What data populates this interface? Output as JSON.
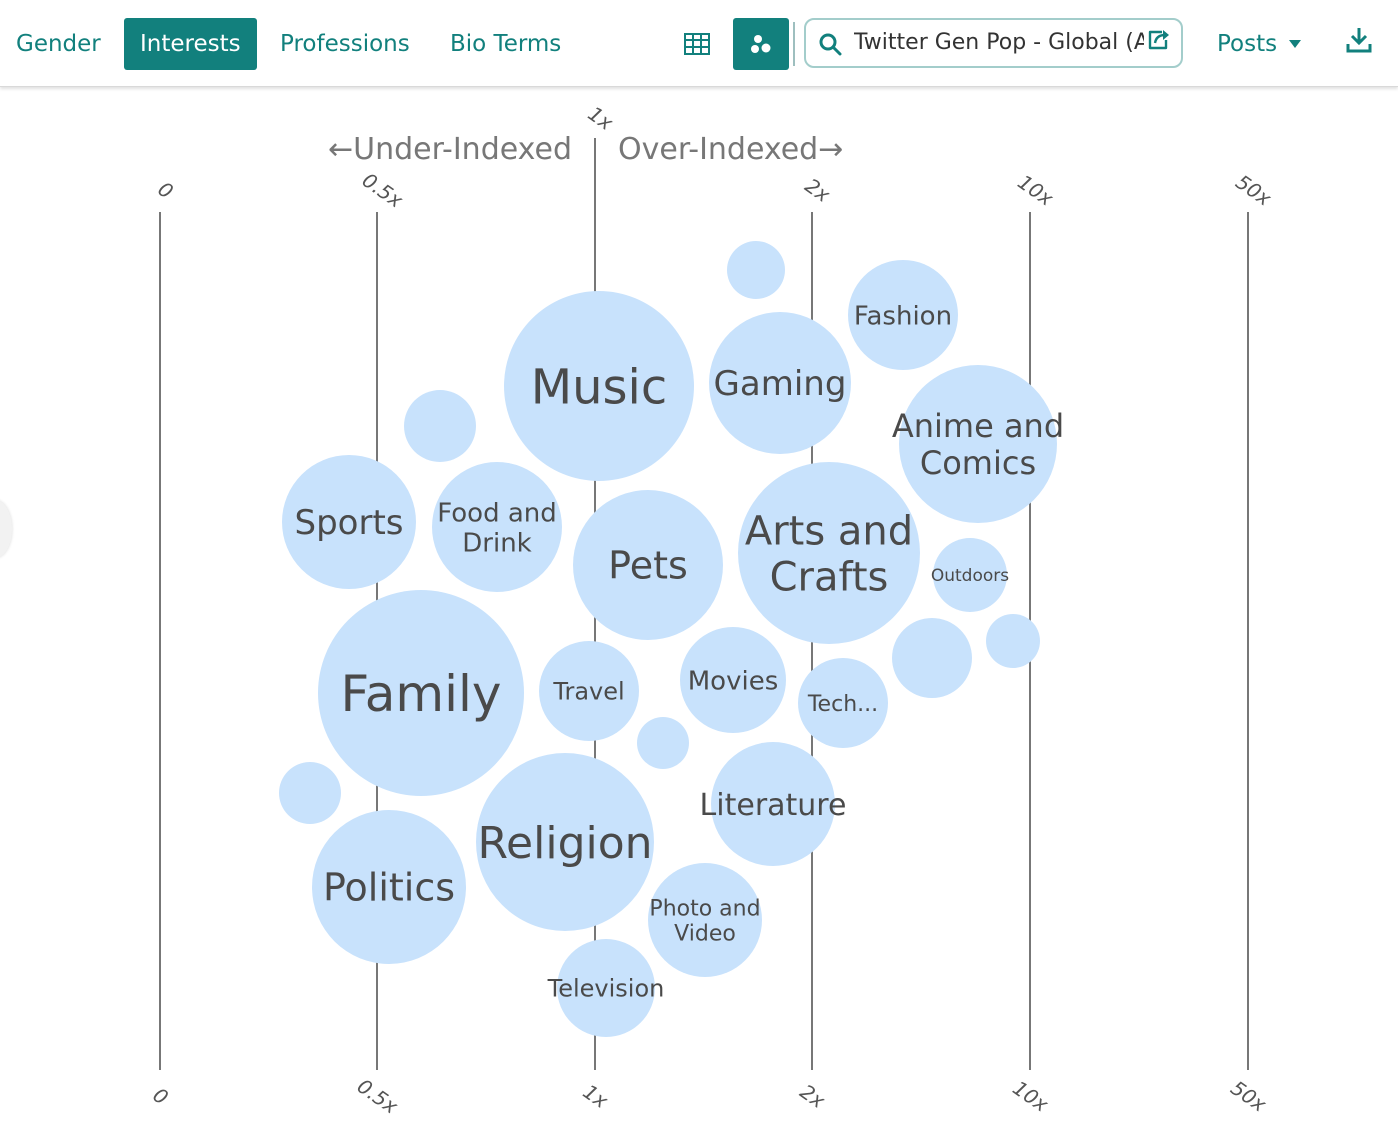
{
  "nav": {
    "tabs": [
      {
        "label": "Gender",
        "active": false
      },
      {
        "label": "Interests",
        "active": true
      },
      {
        "label": "Professions",
        "active": false
      },
      {
        "label": "Bio Terms",
        "active": false
      }
    ],
    "view_buttons": [
      {
        "icon": "table-icon",
        "active": false
      },
      {
        "icon": "bubbles-icon",
        "active": true
      }
    ],
    "search": {
      "value": "Twitter Gen Pop - Global (All",
      "icon": "search-icon",
      "action_icon": "share-icon"
    },
    "posts_label": "Posts",
    "posts_icon": "caret-down-icon",
    "download_icon": "download-icon"
  },
  "colors": {
    "accent": "#12807d",
    "bubble": "#c8e2fc",
    "axis": "#555555",
    "bubble_text": "#4a4a4a"
  },
  "chart_data": {
    "type": "bubble",
    "x_scale": "index (under/over-indexed)",
    "under_label": "←Under-Indexed",
    "over_label": "Over-Indexed→",
    "center_tick": "1x",
    "ticks": [
      {
        "label": "0"
      },
      {
        "label": "0.5x"
      },
      {
        "label": "1x"
      },
      {
        "label": "2x"
      },
      {
        "label": "10x"
      },
      {
        "label": "50x"
      }
    ],
    "bubbles": [
      {
        "label": "Music",
        "index": 1.0,
        "size": 95
      },
      {
        "label": "Gaming",
        "index": 1.8,
        "size": 71
      },
      {
        "label": "Fashion",
        "index": 4.5,
        "size": 55
      },
      {
        "label": "Anime and\nComics",
        "index": 8.6,
        "size": 79
      },
      {
        "label": "",
        "index": 1.7,
        "size": 29
      },
      {
        "label": "",
        "index": 0.62,
        "size": 36
      },
      {
        "label": "Sports",
        "index": 0.45,
        "size": 67
      },
      {
        "label": "Food and\nDrink",
        "index": 0.75,
        "size": 65
      },
      {
        "label": "Pets",
        "index": 1.25,
        "size": 75
      },
      {
        "label": "Arts and\nCrafts",
        "index": 2.2,
        "size": 91
      },
      {
        "label": "Outdoors",
        "index": 7.0,
        "size": 37
      },
      {
        "label": "Family",
        "index": 0.65,
        "size": 103
      },
      {
        "label": "Travel",
        "index": 0.98,
        "size": 50
      },
      {
        "label": "Movies",
        "index": 1.6,
        "size": 53
      },
      {
        "label": "Tech...",
        "index": 2.6,
        "size": 45
      },
      {
        "label": "",
        "index": 5.2,
        "size": 40
      },
      {
        "label": "",
        "index": 9.3,
        "size": 27
      },
      {
        "label": "",
        "index": 1.2,
        "size": 26
      },
      {
        "label": "",
        "index": 0.35,
        "size": 31
      },
      {
        "label": "Literature",
        "index": 1.8,
        "size": 62
      },
      {
        "label": "Religion",
        "index": 0.93,
        "size": 89
      },
      {
        "label": "Politics",
        "index": 0.53,
        "size": 77
      },
      {
        "label": "Photo and\nVideo",
        "index": 1.5,
        "size": 57
      },
      {
        "label": "Television",
        "index": 1.03,
        "size": 49
      }
    ]
  }
}
